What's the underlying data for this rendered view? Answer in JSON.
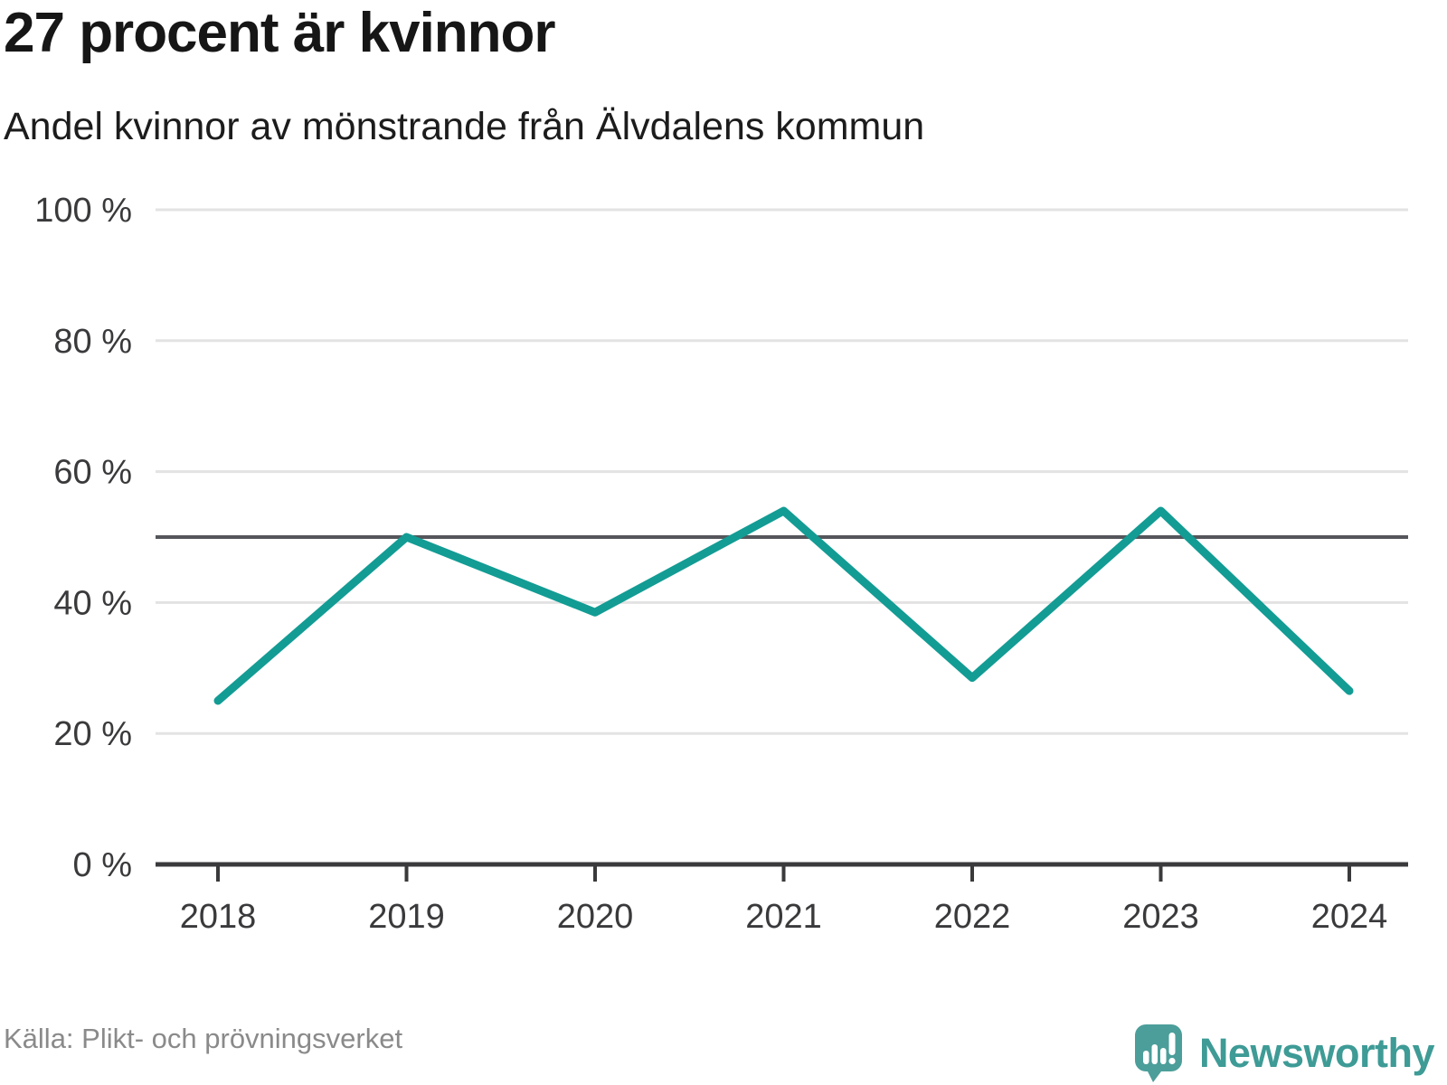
{
  "header": {
    "title": "27 procent är kvinnor",
    "subtitle": "Andel kvinnor av mönstrande från Älvdalens kommun"
  },
  "chart_data": {
    "type": "line",
    "title": "27 procent är kvinnor",
    "subtitle": "Andel kvinnor av mönstrande från Älvdalens kommun",
    "x": [
      "2018",
      "2019",
      "2020",
      "2021",
      "2022",
      "2023",
      "2024"
    ],
    "series": [
      {
        "name": "Andel kvinnor av mönstrande",
        "values": [
          25,
          50,
          38.5,
          54,
          28.5,
          54,
          26.5
        ]
      }
    ],
    "ylim": [
      0,
      100
    ],
    "yticks": [
      0,
      20,
      40,
      60,
      80,
      100
    ],
    "ytick_labels": [
      "0 %",
      "20 %",
      "40 %",
      "60 %",
      "80 %",
      "100 %"
    ],
    "reference_line": 50,
    "grid": true,
    "legend": "none",
    "line_color": "#129C94",
    "grid_color": "#E3E3E3",
    "reference_line_color": "#55565B",
    "axis_color": "#3A3A3C",
    "label_color": "#3A3A3C"
  },
  "footer": {
    "source": "Källa: Plikt- och prövningsverket"
  },
  "logo": {
    "text": "Newsworthy",
    "text_color": "#3E9B96",
    "mark_color": "#4C9E9A"
  }
}
